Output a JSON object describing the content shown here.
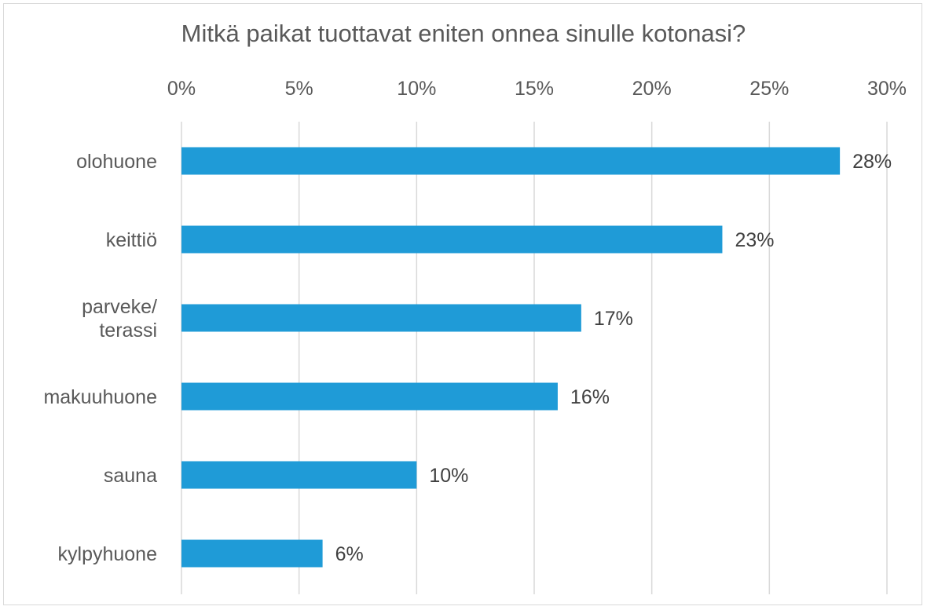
{
  "chart_data": {
    "type": "bar",
    "orientation": "horizontal",
    "title": "Mitkä paikat tuottavat eniten onnea sinulle kotonasi?",
    "categories": [
      [
        "olohuone"
      ],
      [
        "keittiö"
      ],
      [
        "parveke/",
        "terassi"
      ],
      [
        "makuuhuone"
      ],
      [
        "sauna"
      ],
      [
        "kylpyhuone"
      ]
    ],
    "values": [
      28,
      23,
      17,
      16,
      10,
      6
    ],
    "value_labels": [
      "28%",
      "23%",
      "17%",
      "16%",
      "10%",
      "6%"
    ],
    "xlim": [
      0,
      30
    ],
    "x_ticks": [
      0,
      5,
      10,
      15,
      20,
      25,
      30
    ],
    "x_tick_labels": [
      "0%",
      "5%",
      "10%",
      "15%",
      "20%",
      "25%",
      "30%"
    ],
    "x_axis_position": "top",
    "grid": true,
    "legend": false,
    "xlabel": "",
    "ylabel": "",
    "bar_color": "#1f9bd7"
  }
}
